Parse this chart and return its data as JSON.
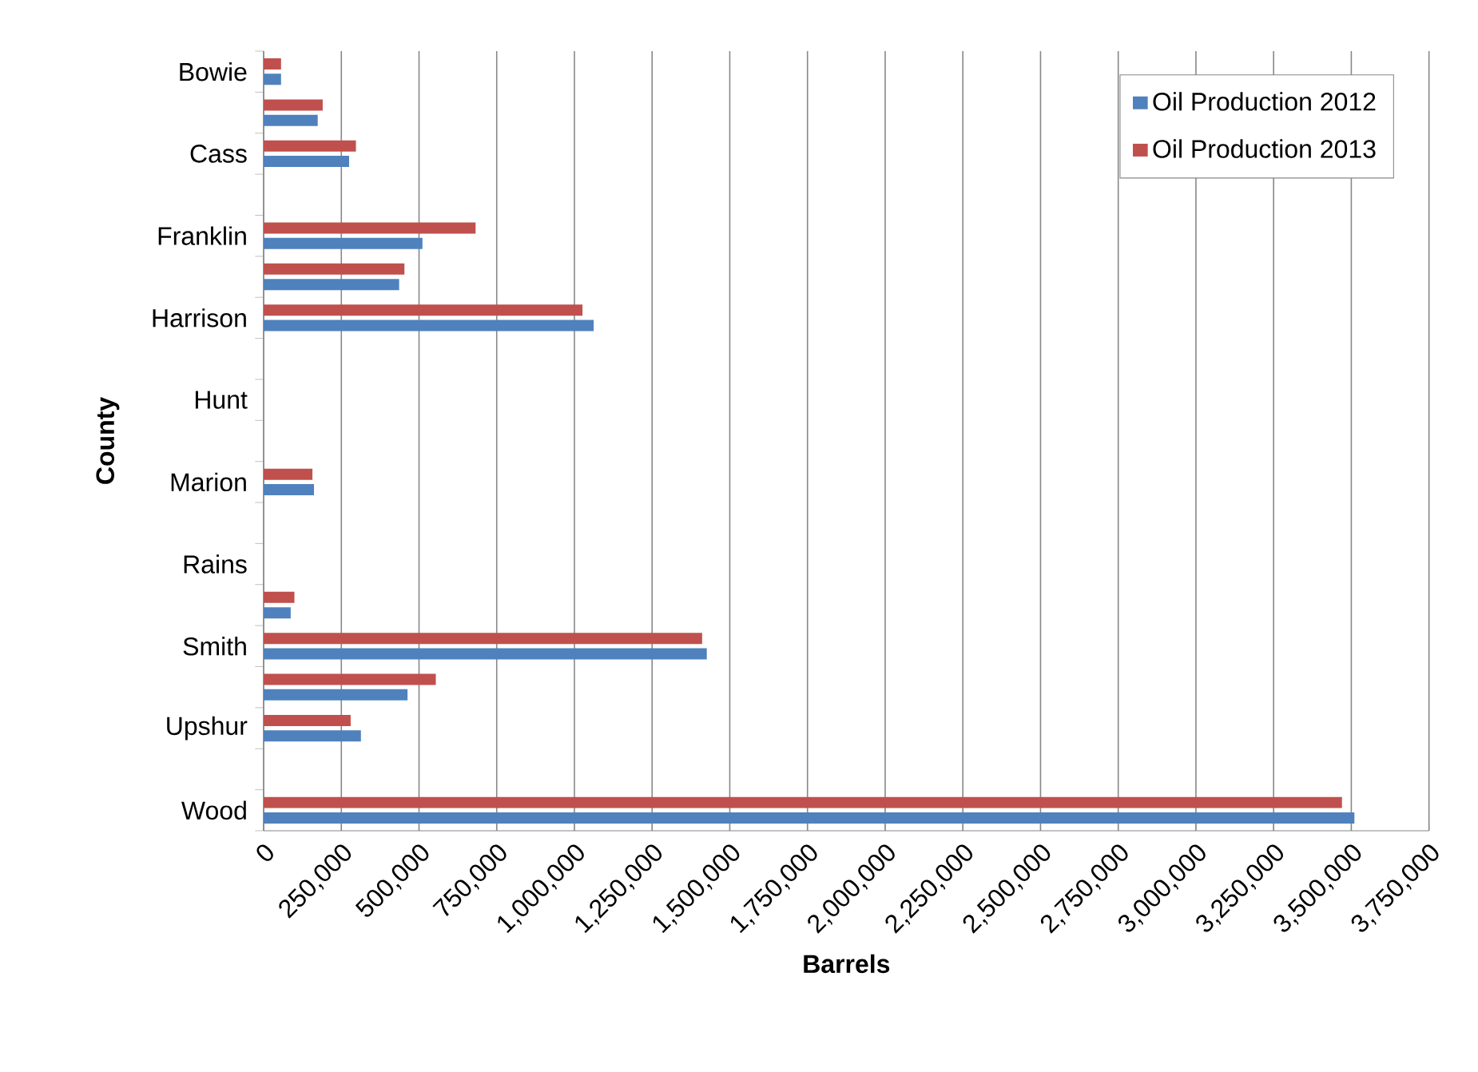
{
  "chart_data": {
    "type": "bar",
    "orientation": "horizontal",
    "xlabel": "Barrels",
    "ylabel": "County",
    "categories": [
      "Bowie",
      null,
      "Cass",
      null,
      "Franklin",
      null,
      "Harrison",
      null,
      "Hunt",
      null,
      "Marion",
      null,
      "Rains",
      null,
      "Smith",
      null,
      "Upshur",
      null,
      "Wood"
    ],
    "series": [
      {
        "name": "Oil Production 2012",
        "color": "#4f81bd",
        "values": [
          56000,
          174000,
          275000,
          null,
          511000,
          436000,
          1062000,
          null,
          null,
          null,
          162000,
          null,
          null,
          87000,
          1426000,
          463000,
          313000,
          null,
          3510000
        ]
      },
      {
        "name": "Oil Production 2013",
        "color": "#c0504d",
        "values": [
          56000,
          190000,
          297000,
          null,
          682000,
          453000,
          1026000,
          null,
          null,
          null,
          157000,
          null,
          null,
          99000,
          1411000,
          554000,
          280000,
          null,
          3470000
        ]
      }
    ],
    "xlim": [
      0,
      3750000
    ],
    "xticks": [
      0,
      {
        "value": 250000,
        "label": "250,000"
      },
      {
        "value": 500000,
        "label": "500,000"
      },
      {
        "value": 750000,
        "label": "750,000"
      },
      {
        "value": 1000000,
        "label": "1,000,000"
      },
      {
        "value": 1250000,
        "label": "1,250,000"
      },
      {
        "value": 1500000,
        "label": "1,500,000"
      },
      {
        "value": 1750000,
        "label": "1,750,000"
      },
      {
        "value": 2000000,
        "label": "2,000,000"
      },
      {
        "value": 2250000,
        "label": "2,250,000"
      },
      {
        "value": 2500000,
        "label": "2,500,000"
      },
      {
        "value": 2750000,
        "label": "2,750,000"
      },
      {
        "value": 3000000,
        "label": "3,000,000"
      },
      {
        "value": 3250000,
        "label": "3,250,000"
      },
      {
        "value": 3500000,
        "label": "3,500,000"
      },
      {
        "value": 3750000,
        "label": "3,750,000"
      }
    ],
    "grid": "x",
    "legend": "top right"
  }
}
